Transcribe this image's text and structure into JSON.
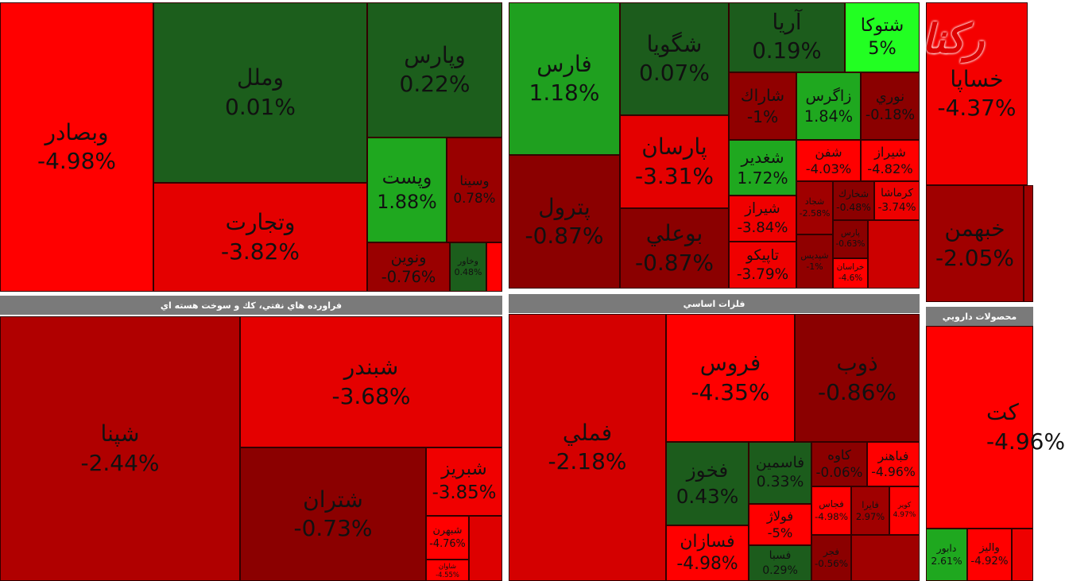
{
  "logo": "رکنا",
  "sections": [
    {
      "cells": [
        {
          "name": "وبصادر",
          "change": "-4.98%",
          "color": "#ff0000"
        },
        {
          "name": "وملل",
          "change": "0.01%",
          "color": "#1c5e1c"
        },
        {
          "name": "وپارس",
          "change": "0.22%",
          "color": "#1c5e1c"
        },
        {
          "name": "وتجارت",
          "change": "-3.82%",
          "color": "#e40000"
        },
        {
          "name": "وپست",
          "change": "1.88%",
          "color": "#1fa81f"
        },
        {
          "name": "وسينا",
          "change": "0.78%",
          "color": "#990000"
        },
        {
          "name": "ونوين",
          "change": "-0.76%",
          "color": "#9a0000"
        },
        {
          "name": "وخاور",
          "change": "0.48%",
          "color": "#1c5e1c"
        }
      ]
    },
    {
      "cells": [
        {
          "name": "فارس",
          "change": "1.18%",
          "color": "#1fa01f"
        },
        {
          "name": "شگويا",
          "change": "0.07%",
          "color": "#1c5c1c"
        },
        {
          "name": "آريا",
          "change": "0.19%",
          "color": "#1c5c1c"
        },
        {
          "name": "شتوكا",
          "change": "5%",
          "color": "#22ff22"
        },
        {
          "name": "پترول",
          "change": "-0.87%",
          "color": "#8b0000"
        },
        {
          "name": "پارسان",
          "change": "-3.31%",
          "color": "#e40000"
        },
        {
          "name": "بوعلي",
          "change": "-0.87%",
          "color": "#8b0000"
        },
        {
          "name": "شاراك",
          "change": "-1%",
          "color": "#900000"
        },
        {
          "name": "زاگرس",
          "change": "1.84%",
          "color": "#1fa81f"
        },
        {
          "name": "نوري",
          "change": "-0.18%",
          "color": "#8b0000"
        },
        {
          "name": "شغدير",
          "change": "1.72%",
          "color": "#1fa81f"
        },
        {
          "name": "شفن",
          "change": "-4.03%",
          "color": "#ff0000"
        },
        {
          "name": "شيراز",
          "change": "-4.82%",
          "color": "#ff0000"
        },
        {
          "name": "شيراز",
          "change": "-3.84%",
          "color": "#f00000"
        },
        {
          "name": "تاپيكو",
          "change": "-3.79%",
          "color": "#f00000"
        },
        {
          "name": "شجاد",
          "change": "-2.58%",
          "color": "#a00000"
        },
        {
          "name": "شخارك",
          "change": "-0.48%",
          "color": "#8b0000"
        },
        {
          "name": "كرماشا",
          "change": "-3.74%",
          "color": "#ee0000"
        },
        {
          "name": "شپديس",
          "change": "-1%",
          "color": "#900000"
        },
        {
          "name": "پارس",
          "change": "-0.63%",
          "color": "#8b0000"
        },
        {
          "name": "خراسان",
          "change": "-4.6%",
          "color": "#ff0000"
        }
      ]
    },
    {
      "cells": [
        {
          "name": "خساپا",
          "change": "-4.37%",
          "color": "#f40000"
        },
        {
          "name": "خبهمن",
          "change": "-2.05%",
          "color": "#a00000"
        }
      ]
    },
    {
      "header": "فراورده هاي نفتي، كك و سوخت هسته اي",
      "cells": [
        {
          "name": "شپنا",
          "change": "-2.44%",
          "color": "#b00000"
        },
        {
          "name": "شبندر",
          "change": "-3.68%",
          "color": "#e40000"
        },
        {
          "name": "شتران",
          "change": "-0.73%",
          "color": "#8b0000"
        },
        {
          "name": "شبريز",
          "change": "-3.85%",
          "color": "#f00000"
        },
        {
          "name": "شبهرن",
          "change": "-4.76%",
          "color": "#ff0000"
        },
        {
          "name": "شاوان",
          "change": "-4.55%",
          "color": "#ff0000"
        }
      ]
    },
    {
      "header": "فلزات اساسي",
      "cells": [
        {
          "name": "فملي",
          "change": "-2.18%",
          "color": "#d40000"
        },
        {
          "name": "فروس",
          "change": "-4.35%",
          "color": "#ff0000"
        },
        {
          "name": "ذوب",
          "change": "-0.86%",
          "color": "#8b0000"
        },
        {
          "name": "فخوز",
          "change": "0.43%",
          "color": "#1c5c1c"
        },
        {
          "name": "فاسمين",
          "change": "0.33%",
          "color": "#1c5c1c"
        },
        {
          "name": "كاوه",
          "change": "-0.06%",
          "color": "#8b0000"
        },
        {
          "name": "فباهنر",
          "change": "-4.96%",
          "color": "#ff0000"
        },
        {
          "name": "فسازان",
          "change": "-4.98%",
          "color": "#ff0000"
        },
        {
          "name": "فولاژ",
          "change": "-5%",
          "color": "#ff0000"
        },
        {
          "name": "فسبا",
          "change": "0.29%",
          "color": "#1c5c1c"
        },
        {
          "name": "فجاس",
          "change": "-4.98%",
          "color": "#ff0000"
        },
        {
          "name": "فايرا",
          "change": "2.97%",
          "color": "#a00000"
        },
        {
          "name": "كوير",
          "change": "4.97%",
          "color": "#ff0000"
        },
        {
          "name": "فجر",
          "change": "-0.56%",
          "color": "#8b0000"
        }
      ]
    },
    {
      "header": "محصولات دارويي",
      "cells": [
        {
          "name": "كت",
          "change": "-4.96%",
          "color": "#ff0000"
        },
        {
          "name": "دابور",
          "change": "2.61%",
          "color": "#1fa81f"
        },
        {
          "name": "واليز",
          "change": "-4.92%",
          "color": "#ff0000"
        }
      ]
    }
  ]
}
